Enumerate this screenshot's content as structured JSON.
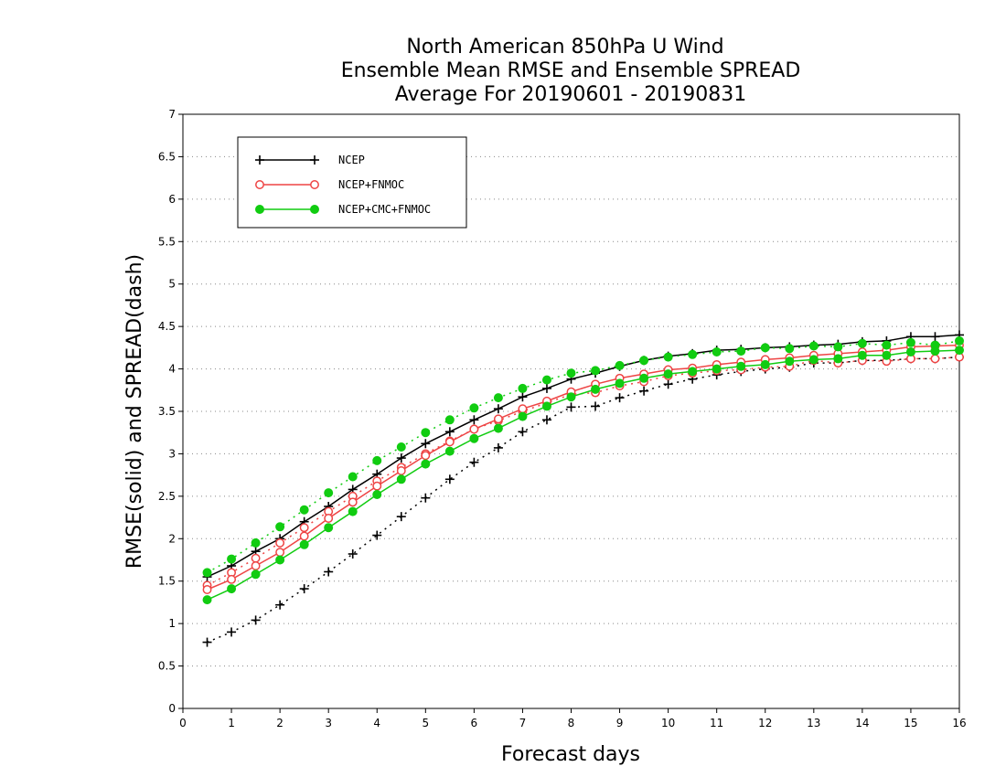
{
  "chart_data": {
    "type": "line",
    "title_lines": [
      "North American 850hPa U Wind",
      "Ensemble Mean RMSE and Ensemble SPREAD",
      "Average For 20190601 - 20190831"
    ],
    "xlabel": "Forecast days",
    "ylabel": "RMSE(solid) and SPREAD(dash)",
    "xlim": [
      0,
      16
    ],
    "ylim": [
      0,
      7
    ],
    "x_ticks": [
      "0",
      "1",
      "2",
      "3",
      "4",
      "5",
      "6",
      "7",
      "8",
      "9",
      "10",
      "11",
      "12",
      "13",
      "14",
      "15",
      "16"
    ],
    "y_ticks": [
      "0",
      "0.5",
      "1",
      "1.5",
      "2",
      "2.5",
      "3",
      "3.5",
      "4",
      "4.5",
      "5",
      "5.5",
      "6",
      "6.5",
      "7"
    ],
    "grid": "horizontal dotted",
    "legend_position": "top-left",
    "x": [
      0.5,
      1,
      1.5,
      2,
      2.5,
      3,
      3.5,
      4,
      4.5,
      5,
      5.5,
      6,
      6.5,
      7,
      7.5,
      8,
      8.5,
      9,
      9.5,
      10,
      10.5,
      11,
      11.5,
      12,
      12.5,
      13,
      13.5,
      14,
      14.5,
      15,
      15.5,
      16
    ],
    "series": [
      {
        "name": "NCEP",
        "color": "#000000",
        "marker": "plus",
        "rmse": [
          1.55,
          1.68,
          1.85,
          2.0,
          2.2,
          2.38,
          2.58,
          2.76,
          2.95,
          3.12,
          3.26,
          3.4,
          3.53,
          3.67,
          3.77,
          3.88,
          3.95,
          4.03,
          4.1,
          4.15,
          4.18,
          4.22,
          4.23,
          4.25,
          4.26,
          4.28,
          4.29,
          4.32,
          4.33,
          4.38,
          4.38,
          4.4
        ],
        "spread": [
          0.78,
          0.9,
          1.04,
          1.22,
          1.41,
          1.61,
          1.82,
          2.04,
          2.26,
          2.48,
          2.7,
          2.9,
          3.07,
          3.26,
          3.4,
          3.55,
          3.56,
          3.66,
          3.74,
          3.82,
          3.88,
          3.93,
          3.97,
          4.0,
          4.02,
          4.07,
          4.07,
          4.1,
          4.1,
          4.12,
          4.12,
          4.14
        ]
      },
      {
        "name": "NCEP+FNMOC",
        "color": "#ee4444",
        "marker": "open-circle",
        "rmse": [
          1.4,
          1.52,
          1.68,
          1.84,
          2.03,
          2.24,
          2.43,
          2.62,
          2.8,
          2.98,
          3.14,
          3.29,
          3.41,
          3.53,
          3.62,
          3.73,
          3.82,
          3.89,
          3.94,
          3.99,
          4.01,
          4.05,
          4.08,
          4.11,
          4.13,
          4.16,
          4.18,
          4.2,
          4.22,
          4.26,
          4.27,
          4.28
        ],
        "spread": [
          1.45,
          1.6,
          1.77,
          1.95,
          2.13,
          2.32,
          2.5,
          2.68,
          2.84,
          3.0,
          3.15,
          3.29,
          3.39,
          3.5,
          3.6,
          3.7,
          3.72,
          3.8,
          3.85,
          3.92,
          3.95,
          3.98,
          3.99,
          4.02,
          4.03,
          4.1,
          4.07,
          4.1,
          4.09,
          4.12,
          4.12,
          4.14
        ]
      },
      {
        "name": "NCEP+CMC+FNMOC",
        "color": "#11cc11",
        "marker": "filled-circle",
        "rmse": [
          1.28,
          1.41,
          1.58,
          1.75,
          1.93,
          2.13,
          2.32,
          2.52,
          2.7,
          2.88,
          3.03,
          3.18,
          3.3,
          3.44,
          3.56,
          3.67,
          3.76,
          3.83,
          3.89,
          3.94,
          3.97,
          4.0,
          4.03,
          4.05,
          4.09,
          4.11,
          4.12,
          4.16,
          4.16,
          4.2,
          4.21,
          4.22
        ],
        "spread": [
          1.6,
          1.76,
          1.95,
          2.14,
          2.34,
          2.54,
          2.73,
          2.92,
          3.08,
          3.25,
          3.4,
          3.54,
          3.66,
          3.77,
          3.87,
          3.95,
          3.98,
          4.04,
          4.1,
          4.14,
          4.17,
          4.2,
          4.21,
          4.25,
          4.24,
          4.27,
          4.26,
          4.3,
          4.28,
          4.31,
          4.28,
          4.33
        ]
      }
    ]
  }
}
